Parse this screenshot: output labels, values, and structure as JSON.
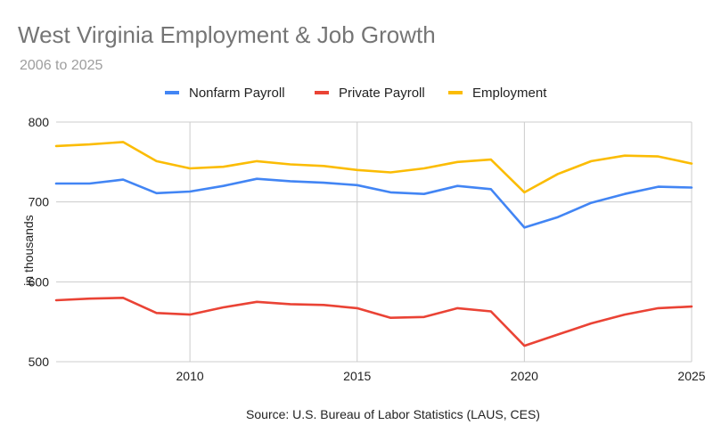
{
  "chart_data": {
    "type": "line",
    "title": "West Virginia Employment & Job Growth",
    "subtitle": "2006 to 2025",
    "ylabel": "in thousands",
    "xlabel": "",
    "source": "Source: U.S. Bureau of Labor Statistics (LAUS, CES)",
    "x": [
      2006,
      2007,
      2008,
      2009,
      2010,
      2011,
      2012,
      2013,
      2014,
      2015,
      2016,
      2017,
      2018,
      2019,
      2020,
      2021,
      2022,
      2023,
      2024,
      2025
    ],
    "xlim": [
      2006,
      2025
    ],
    "ylim": [
      500,
      800
    ],
    "x_ticks": [
      2010,
      2015,
      2020,
      2025
    ],
    "y_ticks": [
      500,
      600,
      700,
      800
    ],
    "grid": true,
    "legend_position": "top",
    "series": [
      {
        "name": "Nonfarm Payroll",
        "color": "#4285f4",
        "values": [
          723,
          723,
          728,
          711,
          713,
          720,
          729,
          726,
          724,
          721,
          712,
          710,
          720,
          716,
          668,
          681,
          699,
          710,
          719,
          718
        ]
      },
      {
        "name": "Private Payroll",
        "color": "#ea4335",
        "values": [
          577,
          579,
          580,
          561,
          559,
          568,
          575,
          572,
          571,
          567,
          555,
          556,
          567,
          563,
          520,
          534,
          548,
          559,
          567,
          569
        ]
      },
      {
        "name": "Employment",
        "color": "#fbbc04",
        "values": [
          770,
          772,
          775,
          751,
          742,
          744,
          751,
          747,
          745,
          740,
          737,
          742,
          750,
          753,
          712,
          735,
          751,
          758,
          757,
          748
        ]
      }
    ]
  }
}
